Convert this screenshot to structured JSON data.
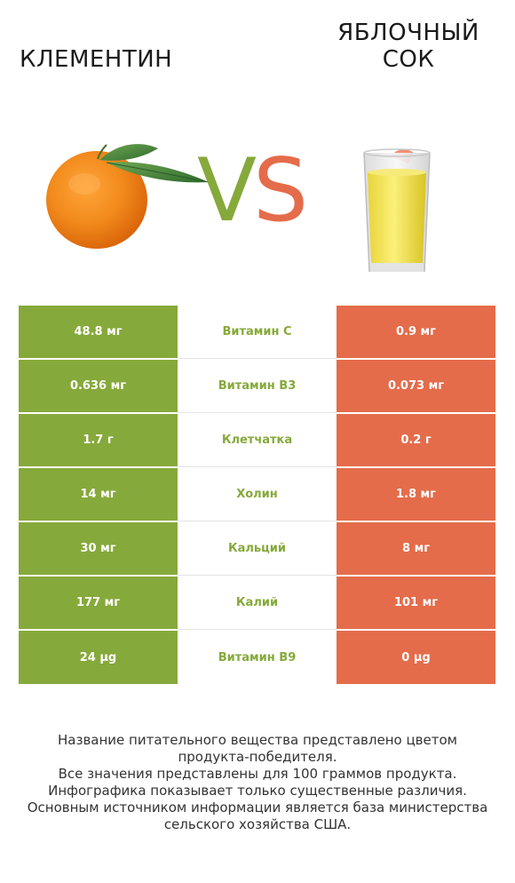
{
  "header": {
    "left_title": "КЛЕМЕНТИН",
    "right_title_line1": "ЯБЛОЧНЫЙ",
    "right_title_line2": "СОК",
    "vs_v": "V",
    "vs_s": "S"
  },
  "colors": {
    "winner_left": "#86a93b",
    "winner_right": "#e46c4b"
  },
  "rows": [
    {
      "left": "48.8 мг",
      "nutrient": "Витамин C",
      "right": "0.9 мг"
    },
    {
      "left": "0.636 мг",
      "nutrient": "Витамин B3",
      "right": "0.073 мг"
    },
    {
      "left": "1.7 г",
      "nutrient": "Клетчатка",
      "right": "0.2 г"
    },
    {
      "left": "14 мг",
      "nutrient": "Холин",
      "right": "1.8 мг"
    },
    {
      "left": "30 мг",
      "nutrient": "Кальций",
      "right": "8 мг"
    },
    {
      "left": "177 мг",
      "nutrient": "Калий",
      "right": "101 мг"
    },
    {
      "left": "24 µg",
      "nutrient": "Витамин B9",
      "right": "0 µg"
    }
  ],
  "footer": {
    "line1": "Название питательного вещества представлено цветом",
    "line2": "продукта-победителя.",
    "line3": "Все значения представлены для 100 граммов продукта.",
    "line4": "Инфографика показывает только существенные различия.",
    "line5": "Основным источником информации является база министерства",
    "line6": "сельского хозяйства США."
  },
  "images": {
    "left": "clementine-image",
    "right": "apple-juice-glass-image"
  }
}
